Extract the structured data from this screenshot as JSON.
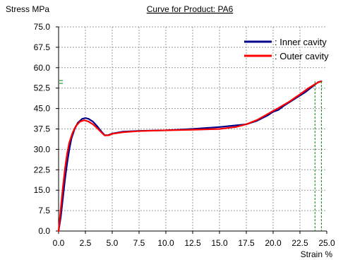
{
  "chart_data": {
    "type": "line",
    "title": "Curve for Product: PA6",
    "xlabel": "Strain  %",
    "ylabel": "Stress  MPa",
    "xlim": [
      0,
      25
    ],
    "ylim": [
      0,
      75
    ],
    "grid": true,
    "legend": "top-right",
    "x_ticks": [
      "0.0",
      "2.5",
      "5.0",
      "7.5",
      "10.0",
      "12.5",
      "15.0",
      "17.5",
      "20.0",
      "22.5",
      "25.0"
    ],
    "y_ticks": [
      "0.0",
      "7.5",
      "15.0",
      "22.5",
      "30.0",
      "37.5",
      "45.0",
      "52.5",
      "60.0",
      "67.5",
      "75.0"
    ],
    "series": [
      {
        "name": "Inner cavity",
        "legend_label": ": Inner cavity",
        "color": "#00008b",
        "points": [
          [
            0.0,
            0.0
          ],
          [
            0.2,
            5.0
          ],
          [
            0.4,
            12.0
          ],
          [
            0.6,
            19.0
          ],
          [
            0.8,
            25.0
          ],
          [
            1.0,
            30.0
          ],
          [
            1.2,
            34.0
          ],
          [
            1.5,
            37.5
          ],
          [
            1.8,
            39.8
          ],
          [
            2.2,
            41.2
          ],
          [
            2.5,
            41.5
          ],
          [
            2.8,
            41.2
          ],
          [
            3.2,
            40.2
          ],
          [
            3.6,
            38.5
          ],
          [
            4.0,
            36.5
          ],
          [
            4.3,
            35.2
          ],
          [
            4.6,
            35.2
          ],
          [
            5.0,
            35.8
          ],
          [
            6.0,
            36.5
          ],
          [
            7.5,
            36.8
          ],
          [
            10.0,
            37.0
          ],
          [
            12.5,
            37.5
          ],
          [
            15.0,
            38.2
          ],
          [
            16.5,
            38.8
          ],
          [
            17.5,
            39.2
          ],
          [
            18.5,
            40.5
          ],
          [
            19.5,
            42.5
          ],
          [
            20.0,
            43.8
          ],
          [
            20.5,
            44.5
          ],
          [
            21.0,
            46.0
          ],
          [
            22.0,
            48.5
          ],
          [
            23.0,
            51.0
          ],
          [
            23.8,
            53.5
          ],
          [
            24.2,
            54.7
          ],
          [
            24.5,
            55.0
          ]
        ]
      },
      {
        "name": "Outer cavity",
        "legend_label": ": Outer cavity",
        "color": "#ff0000",
        "points": [
          [
            0.0,
            0.0
          ],
          [
            0.2,
            8.0
          ],
          [
            0.4,
            16.0
          ],
          [
            0.6,
            23.0
          ],
          [
            0.8,
            28.5
          ],
          [
            1.0,
            32.5
          ],
          [
            1.3,
            36.0
          ],
          [
            1.6,
            38.5
          ],
          [
            2.0,
            40.2
          ],
          [
            2.4,
            40.7
          ],
          [
            2.8,
            40.2
          ],
          [
            3.2,
            39.2
          ],
          [
            3.6,
            37.8
          ],
          [
            4.0,
            36.2
          ],
          [
            4.3,
            35.1
          ],
          [
            4.7,
            35.2
          ],
          [
            5.0,
            35.7
          ],
          [
            6.0,
            36.3
          ],
          [
            7.5,
            36.7
          ],
          [
            10.0,
            37.0
          ],
          [
            12.5,
            37.2
          ],
          [
            15.0,
            37.5
          ],
          [
            16.5,
            38.2
          ],
          [
            17.5,
            39.2
          ],
          [
            18.5,
            40.8
          ],
          [
            19.5,
            43.0
          ],
          [
            20.5,
            45.2
          ],
          [
            21.5,
            47.5
          ],
          [
            22.5,
            50.2
          ],
          [
            23.3,
            52.5
          ],
          [
            23.8,
            53.7
          ],
          [
            24.2,
            54.6
          ],
          [
            24.5,
            55.0
          ]
        ]
      }
    ],
    "vertical_markers": [
      {
        "x": 23.9,
        "y": 55.0,
        "color": "#008000"
      },
      {
        "x": 24.5,
        "y": 55.0,
        "color": "#008000"
      }
    ]
  }
}
